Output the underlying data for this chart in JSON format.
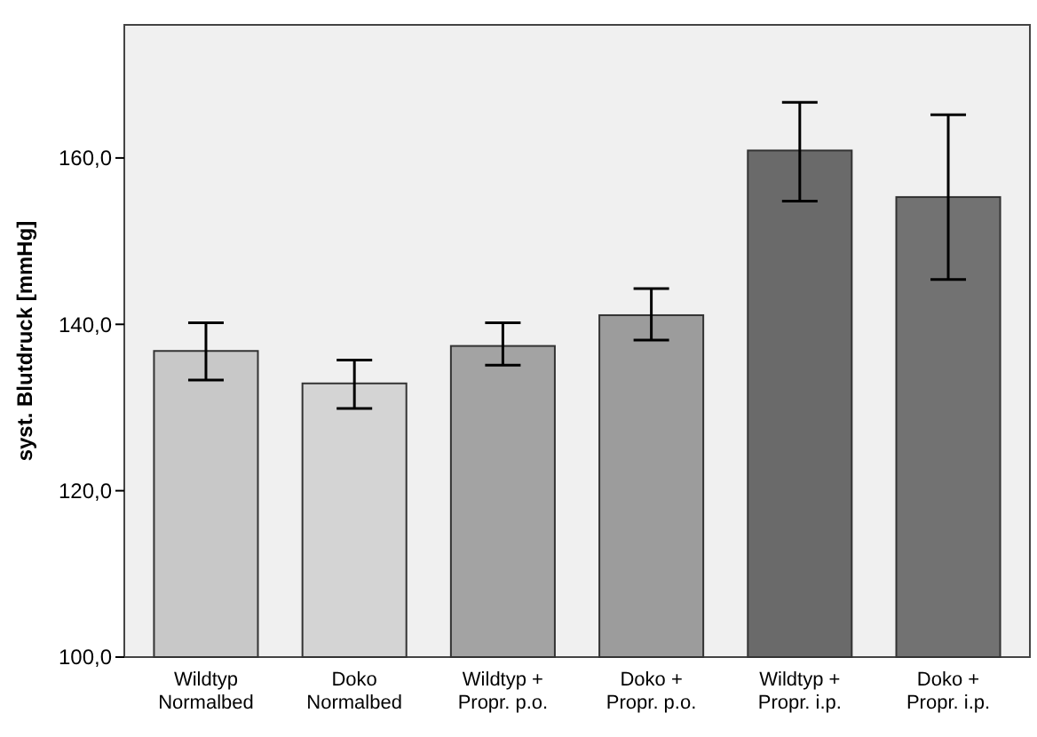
{
  "chart_data": {
    "type": "bar",
    "ylabel": "syst. Blutdruck [mmHg]",
    "categories": [
      "Wildtyp\nNormalbed",
      "Doko\nNormalbed",
      "Wildtyp +\nPropr. p.o.",
      "Doko +\nPropr. p.o.",
      "Wildtyp +\nPropr. i.p.",
      "Doko +\nPropr. i.p."
    ],
    "values": [
      136.8,
      132.9,
      137.4,
      141.1,
      160.9,
      155.3
    ],
    "colors": [
      "#c8c8c8",
      "#d4d4d4",
      "#a3a3a3",
      "#9c9c9c",
      "#6a6a6a",
      "#727272"
    ],
    "errors": [
      [
        133.3,
        140.2
      ],
      [
        129.9,
        135.7
      ],
      [
        135.1,
        140.2
      ],
      [
        138.1,
        144.3
      ],
      [
        154.8,
        166.7
      ],
      [
        145.4,
        165.2
      ]
    ],
    "ylim": [
      100,
      176
    ],
    "yticks": [
      {
        "value": 100,
        "label": "100,0"
      },
      {
        "value": 120,
        "label": "120,0"
      },
      {
        "value": 140,
        "label": "140,0"
      },
      {
        "value": 160,
        "label": "160,0"
      }
    ],
    "grid": false
  }
}
